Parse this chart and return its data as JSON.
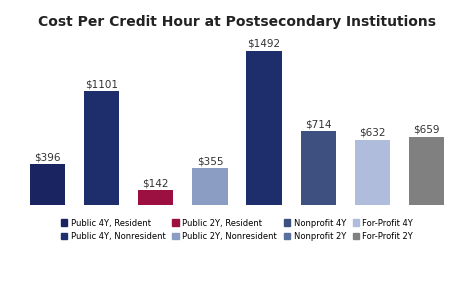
{
  "title": "Cost Per Credit Hour at Postsecondary Institutions",
  "categories": [
    "Public 4Y,\nResident",
    "Public 4Y,\nNonresident",
    "Public 2Y,\nResident",
    "Public 2Y,\nNonresident",
    "Nonprofit\n4Y",
    "Nonprofit\n2Y",
    "For-Profit\n4Y",
    "For-Profit\n2Y"
  ],
  "values": [
    396,
    1101,
    142,
    355,
    1492,
    714,
    632,
    659
  ],
  "bar_colors": [
    "#1a2461",
    "#1e2d6b",
    "#9b1040",
    "#8b9dc3",
    "#1e2d6b",
    "#3d5080",
    "#b0bcdc",
    "#808080"
  ],
  "labels": [
    "$396",
    "$1101",
    "$142",
    "$355",
    "$1492",
    "$714",
    "$632",
    "$659"
  ],
  "legend_labels": [
    "Public 4Y, Resident",
    "Public 4Y, Nonresident",
    "Public 2Y, Resident",
    "Public 2Y, Nonresident",
    "Nonprofit 4Y",
    "Nonprofit 2Y",
    "For-Profit 4Y",
    "For-Profit 2Y"
  ],
  "legend_colors": [
    "#1a2461",
    "#1e3070",
    "#9b1040",
    "#8b9dc3",
    "#3d5080",
    "#5a6fa0",
    "#b0bcdc",
    "#808080"
  ],
  "ylim": [
    0,
    1650
  ],
  "background_color": "#ffffff",
  "title_fontsize": 10,
  "bar_label_fontsize": 7.5
}
